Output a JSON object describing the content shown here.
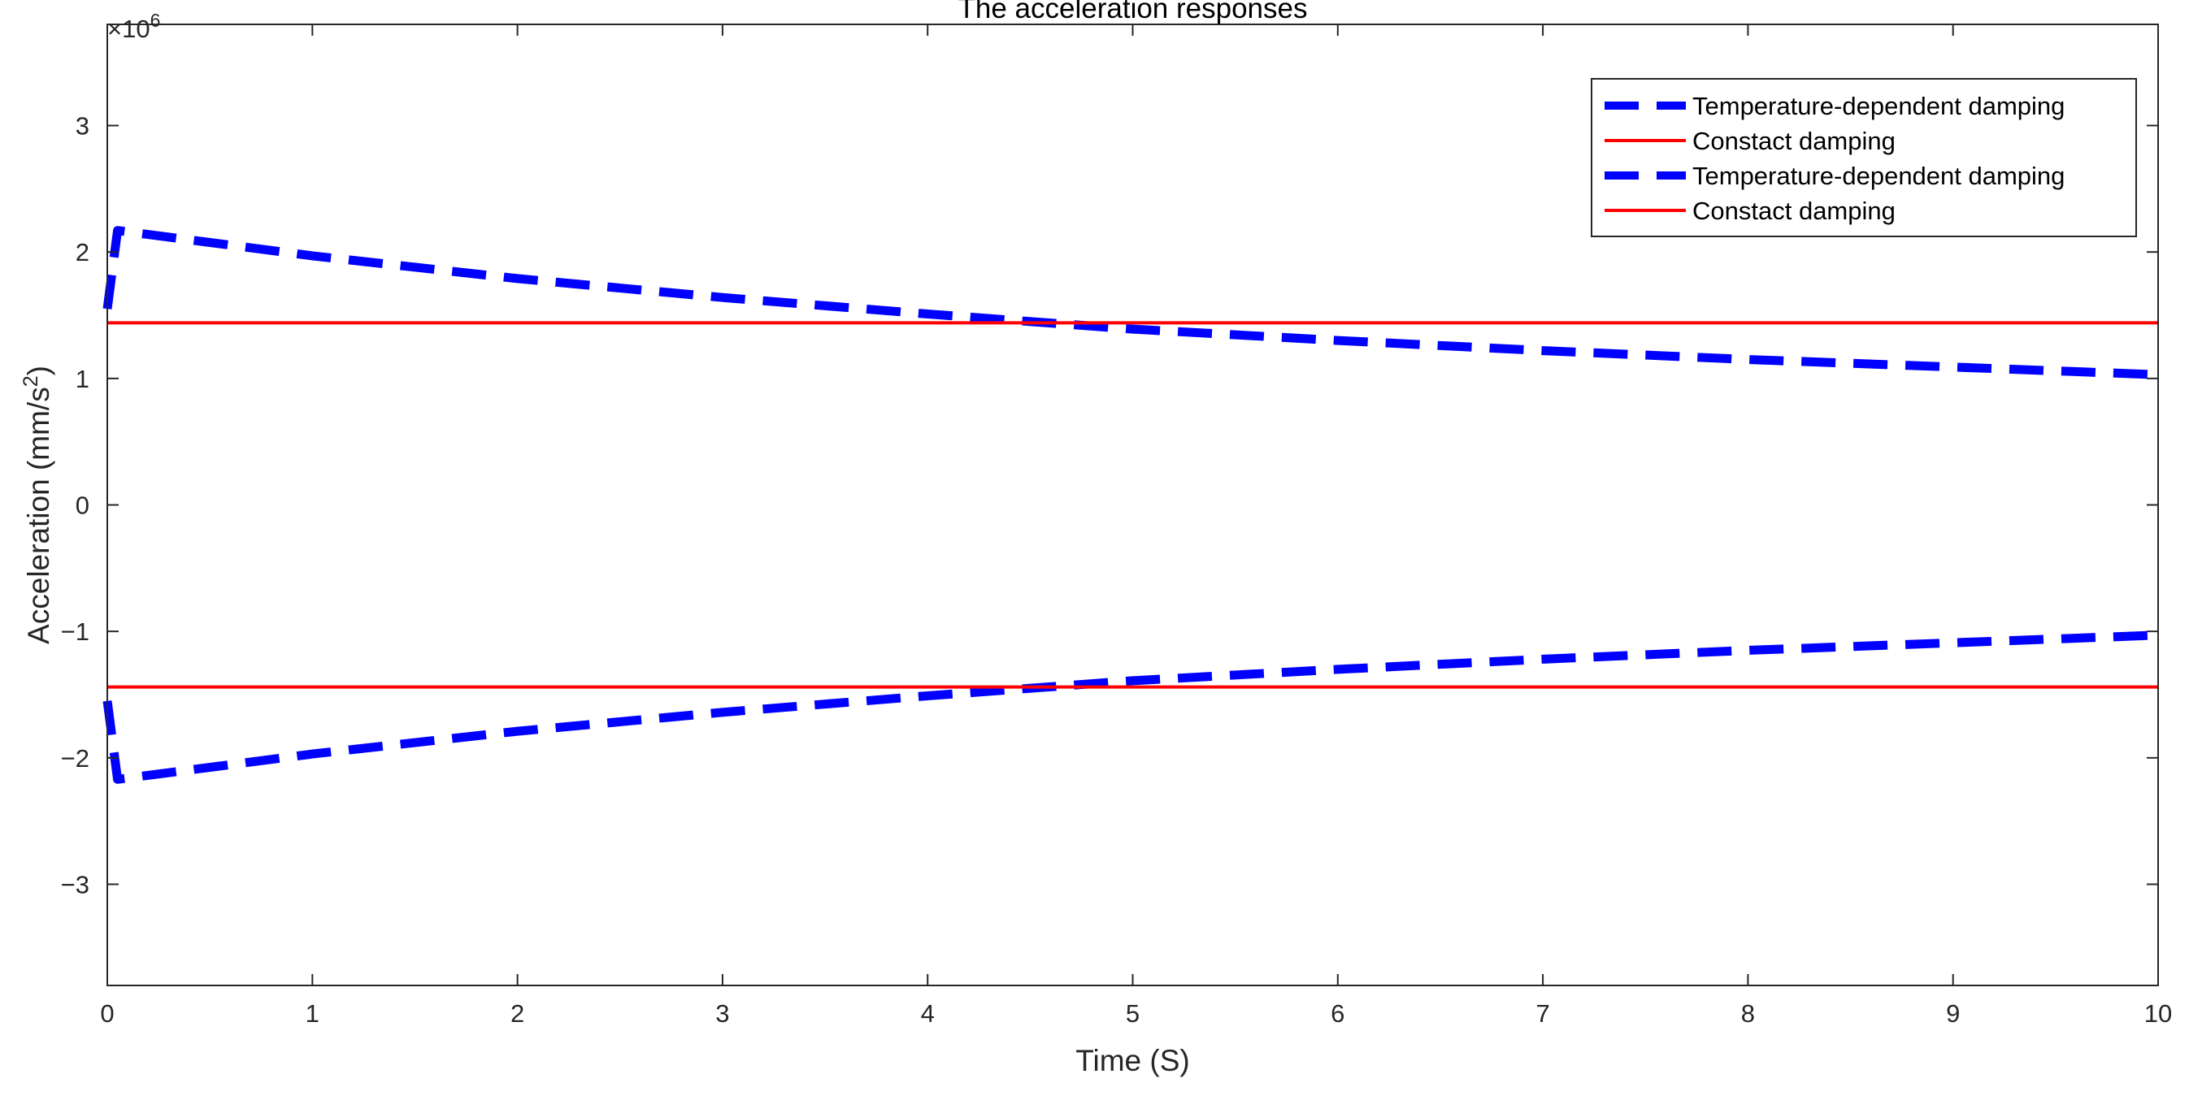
{
  "chart_data": {
    "type": "line",
    "title": "The acceleration responses",
    "xlabel": "Time (S)",
    "ylabel": "Acceleration (mm/s",
    "ylabel_sup": "2",
    "ylabel_close": ")",
    "exponent_base": "×10",
    "exponent_power": "6",
    "xlim": [
      0,
      10
    ],
    "ylim": [
      -3.8,
      3.8
    ],
    "y_scale": 1000000,
    "xticks": [
      0,
      1,
      2,
      3,
      4,
      5,
      6,
      7,
      8,
      9,
      10
    ],
    "xtick_labels": [
      "0",
      "1",
      "2",
      "3",
      "4",
      "5",
      "6",
      "7",
      "8",
      "9",
      "10"
    ],
    "yticks": [
      -3,
      -2,
      -1,
      0,
      1,
      2,
      3
    ],
    "ytick_labels": [
      "−3",
      "−2",
      "−1",
      "0",
      "1",
      "2",
      "3"
    ],
    "grid": false,
    "legend_position": "top-right",
    "series": [
      {
        "name": "Temperature-dependent damping",
        "color": "#0000ff",
        "style": "dashed",
        "x": [
          0,
          0.05,
          1,
          2,
          3,
          4,
          5,
          6,
          7,
          8,
          9,
          10
        ],
        "y": [
          1.55,
          2.17,
          1.97,
          1.79,
          1.64,
          1.51,
          1.39,
          1.3,
          1.22,
          1.15,
          1.09,
          1.03
        ]
      },
      {
        "name": "Constact damping",
        "color": "#ff0000",
        "style": "solid",
        "x": [
          0,
          10
        ],
        "y": [
          1.44,
          1.44
        ]
      },
      {
        "name": "Temperature-dependent damping",
        "color": "#0000ff",
        "style": "dashed",
        "x": [
          0,
          0.05,
          1,
          2,
          3,
          4,
          5,
          6,
          7,
          8,
          9,
          10
        ],
        "y": [
          -1.55,
          -2.17,
          -1.97,
          -1.79,
          -1.64,
          -1.51,
          -1.39,
          -1.3,
          -1.22,
          -1.15,
          -1.09,
          -1.03
        ]
      },
      {
        "name": "Constact damping",
        "color": "#ff0000",
        "style": "solid",
        "x": [
          0,
          10
        ],
        "y": [
          -1.44,
          -1.44
        ]
      }
    ]
  }
}
